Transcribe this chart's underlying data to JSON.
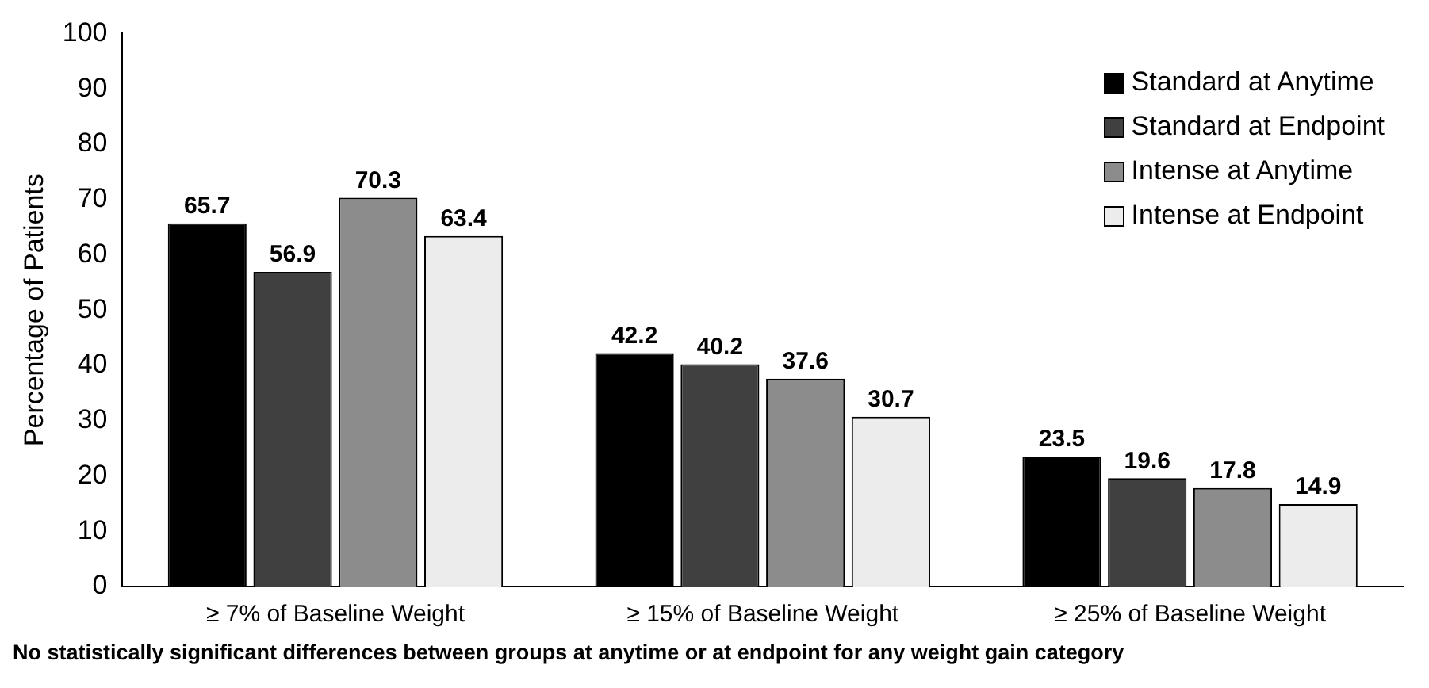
{
  "chart_data": {
    "type": "bar",
    "categories": [
      "≥ 7% of Baseline Weight",
      "≥ 15% of Baseline Weight",
      "≥ 25% of Baseline Weight"
    ],
    "series": [
      {
        "name": "Standard at Anytime",
        "color": "#000000",
        "values": [
          65.7,
          42.2,
          23.5
        ]
      },
      {
        "name": "Standard at Endpoint",
        "color": "#404040",
        "values": [
          56.9,
          40.2,
          19.6
        ]
      },
      {
        "name": "Intense at Anytime",
        "color": "#8c8c8c",
        "values": [
          70.3,
          37.6,
          17.8
        ]
      },
      {
        "name": "Intense at Endpoint",
        "color": "#ececec",
        "values": [
          63.4,
          30.7,
          14.9
        ]
      }
    ],
    "ylabel": "Percentage of Patients",
    "ylim": [
      0,
      100
    ],
    "yticks": [
      0,
      10,
      20,
      30,
      40,
      50,
      60,
      70,
      80,
      90,
      100
    ],
    "grid": false,
    "legend": "top right",
    "data_labels": true,
    "annotations": [
      "No statistically significant differences between groups at anytime or at endpoint for any weight gain category"
    ]
  }
}
